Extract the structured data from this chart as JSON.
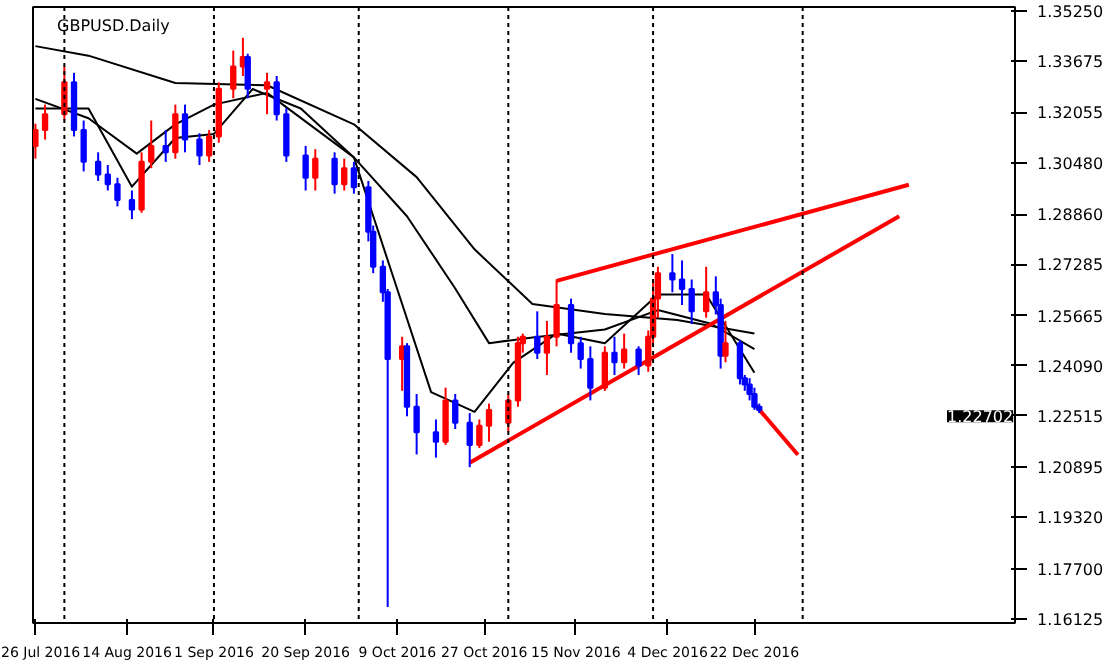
{
  "chart_data": {
    "type": "candlestick",
    "title": "GBPUSD.Daily",
    "x": [
      "2016-07-26",
      "2016-07-28",
      "2016-08-01",
      "2016-08-03",
      "2016-08-05",
      "2016-08-08",
      "2016-08-10",
      "2016-08-12",
      "2016-08-15",
      "2016-08-17",
      "2016-08-19",
      "2016-08-22",
      "2016-08-24",
      "2016-08-26",
      "2016-08-29",
      "2016-08-31",
      "2016-09-02",
      "2016-09-05",
      "2016-09-07",
      "2016-09-08",
      "2016-09-12",
      "2016-09-14",
      "2016-09-16",
      "2016-09-20",
      "2016-09-22",
      "2016-09-26",
      "2016-09-28",
      "2016-09-30",
      "2016-10-03",
      "2016-10-04",
      "2016-10-06",
      "2016-10-07",
      "2016-10-10",
      "2016-10-11",
      "2016-10-13",
      "2016-10-17",
      "2016-10-19",
      "2016-10-21",
      "2016-10-24",
      "2016-10-26",
      "2016-10-28",
      "2016-11-01",
      "2016-11-03",
      "2016-11-04",
      "2016-11-07",
      "2016-11-09",
      "2016-11-11",
      "2016-11-14",
      "2016-11-16",
      "2016-11-18",
      "2016-11-21",
      "2016-11-23",
      "2016-11-25",
      "2016-11-28",
      "2016-11-30",
      "2016-12-01",
      "2016-12-02",
      "2016-12-05",
      "2016-12-07",
      "2016-12-09",
      "2016-12-12",
      "2016-12-14",
      "2016-12-15",
      "2016-12-16",
      "2016-12-19",
      "2016-12-20",
      "2016-12-21",
      "2016-12-22",
      "2016-12-23"
    ],
    "ohlc": [
      [
        1.31,
        1.317,
        1.306,
        1.315
      ],
      [
        1.315,
        1.323,
        1.312,
        1.32
      ],
      [
        1.32,
        1.335,
        1.318,
        1.33
      ],
      [
        1.33,
        1.333,
        1.313,
        1.315
      ],
      [
        1.315,
        1.318,
        1.302,
        1.305
      ],
      [
        1.305,
        1.308,
        1.299,
        1.301
      ],
      [
        1.301,
        1.304,
        1.296,
        1.298
      ],
      [
        1.298,
        1.3,
        1.291,
        1.293
      ],
      [
        1.293,
        1.296,
        1.287,
        1.29
      ],
      [
        1.29,
        1.308,
        1.289,
        1.305
      ],
      [
        1.305,
        1.318,
        1.303,
        1.31
      ],
      [
        1.31,
        1.315,
        1.305,
        1.308
      ],
      [
        1.308,
        1.323,
        1.306,
        1.32
      ],
      [
        1.32,
        1.323,
        1.308,
        1.312
      ],
      [
        1.312,
        1.314,
        1.304,
        1.307
      ],
      [
        1.307,
        1.315,
        1.305,
        1.313
      ],
      [
        1.313,
        1.33,
        1.311,
        1.328
      ],
      [
        1.328,
        1.34,
        1.325,
        1.335
      ],
      [
        1.335,
        1.344,
        1.332,
        1.338
      ],
      [
        1.338,
        1.339,
        1.325,
        1.328
      ],
      [
        1.328,
        1.333,
        1.32,
        1.33
      ],
      [
        1.33,
        1.332,
        1.318,
        1.32
      ],
      [
        1.32,
        1.322,
        1.305,
        1.307
      ],
      [
        1.307,
        1.31,
        1.296,
        1.3
      ],
      [
        1.3,
        1.309,
        1.296,
        1.306
      ],
      [
        1.306,
        1.308,
        1.295,
        1.298
      ],
      [
        1.298,
        1.306,
        1.296,
        1.303
      ],
      [
        1.303,
        1.305,
        1.295,
        1.297
      ],
      [
        1.297,
        1.299,
        1.28,
        1.283
      ],
      [
        1.283,
        1.285,
        1.27,
        1.272
      ],
      [
        1.272,
        1.274,
        1.261,
        1.264
      ],
      [
        1.264,
        1.265,
        1.165,
        1.243
      ],
      [
        1.243,
        1.25,
        1.233,
        1.247
      ],
      [
        1.247,
        1.248,
        1.225,
        1.228
      ],
      [
        1.228,
        1.232,
        1.213,
        1.22
      ],
      [
        1.22,
        1.224,
        1.212,
        1.217
      ],
      [
        1.217,
        1.234,
        1.216,
        1.23
      ],
      [
        1.23,
        1.232,
        1.221,
        1.223
      ],
      [
        1.223,
        1.226,
        1.209,
        1.216
      ],
      [
        1.216,
        1.224,
        1.215,
        1.222
      ],
      [
        1.222,
        1.229,
        1.217,
        1.227
      ],
      [
        1.223,
        1.232,
        1.22,
        1.23
      ],
      [
        1.23,
        1.25,
        1.228,
        1.248
      ],
      [
        1.248,
        1.251,
        1.245,
        1.25
      ],
      [
        1.25,
        1.258,
        1.243,
        1.245
      ],
      [
        1.245,
        1.255,
        1.238,
        1.25
      ],
      [
        1.25,
        1.268,
        1.247,
        1.26
      ],
      [
        1.26,
        1.262,
        1.245,
        1.248
      ],
      [
        1.248,
        1.25,
        1.24,
        1.243
      ],
      [
        1.243,
        1.247,
        1.23,
        1.234
      ],
      [
        1.234,
        1.247,
        1.233,
        1.245
      ],
      [
        1.245,
        1.25,
        1.238,
        1.242
      ],
      [
        1.242,
        1.251,
        1.24,
        1.246
      ],
      [
        1.246,
        1.247,
        1.238,
        1.241
      ],
      [
        1.241,
        1.252,
        1.239,
        1.25
      ],
      [
        1.25,
        1.268,
        1.248,
        1.262
      ],
      [
        1.262,
        1.272,
        1.256,
        1.27
      ],
      [
        1.27,
        1.276,
        1.264,
        1.268
      ],
      [
        1.268,
        1.274,
        1.26,
        1.265
      ],
      [
        1.265,
        1.268,
        1.254,
        1.258
      ],
      [
        1.258,
        1.272,
        1.256,
        1.264
      ],
      [
        1.264,
        1.269,
        1.257,
        1.26
      ],
      [
        1.26,
        1.262,
        1.24,
        1.244
      ],
      [
        1.244,
        1.255,
        1.242,
        1.248
      ],
      [
        1.248,
        1.249,
        1.235,
        1.237
      ],
      [
        1.237,
        1.238,
        1.233,
        1.235
      ],
      [
        1.235,
        1.237,
        1.23,
        1.232
      ],
      [
        1.232,
        1.234,
        1.227,
        1.228
      ],
      [
        1.228,
        1.229,
        1.226,
        1.227
      ]
    ],
    "colors": [
      "#ff0000",
      "#ff0000",
      "#ff0000",
      "#0000ff",
      "#0000ff",
      "#0000ff",
      "#0000ff",
      "#0000ff",
      "#0000ff",
      "#ff0000",
      "#ff0000",
      "#0000ff",
      "#ff0000",
      "#0000ff",
      "#0000ff",
      "#ff0000",
      "#ff0000",
      "#ff0000",
      "#ff0000",
      "#0000ff",
      "#ff0000",
      "#0000ff",
      "#0000ff",
      "#0000ff",
      "#ff0000",
      "#0000ff",
      "#ff0000",
      "#0000ff",
      "#0000ff",
      "#0000ff",
      "#0000ff",
      "#0000ff",
      "#ff0000",
      "#0000ff",
      "#0000ff",
      "#0000ff",
      "#ff0000",
      "#0000ff",
      "#0000ff",
      "#ff0000",
      "#ff0000",
      "#ff0000",
      "#ff0000",
      "#ff0000",
      "#0000ff",
      "#ff0000",
      "#ff0000",
      "#0000ff",
      "#0000ff",
      "#0000ff",
      "#ff0000",
      "#0000ff",
      "#ff0000",
      "#0000ff",
      "#ff0000",
      "#ff0000",
      "#ff0000",
      "#0000ff",
      "#0000ff",
      "#0000ff",
      "#ff0000",
      "#0000ff",
      "#0000ff",
      "#ff0000",
      "#0000ff",
      "#0000ff",
      "#0000ff",
      "#0000ff",
      "#0000ff"
    ],
    "series": [
      {
        "type": "line",
        "color": "#000000",
        "x": [
          "2016-07-26",
          "2016-08-06",
          "2016-08-24",
          "2016-09-12",
          "2016-09-30",
          "2016-10-13",
          "2016-10-25",
          "2016-11-06",
          "2016-11-21",
          "2016-12-06",
          "2016-12-22"
        ],
        "values": [
          1.3414,
          1.3384,
          1.3298,
          1.3291,
          1.3168,
          1.3002,
          1.2775,
          1.2603,
          1.2572,
          1.2553,
          1.251
        ]
      },
      {
        "type": "line",
        "color": "#000000",
        "x": [
          "2016-07-26",
          "2016-08-06",
          "2016-08-16",
          "2016-08-24",
          "2016-09-01",
          "2016-09-12",
          "2016-09-30",
          "2016-10-11",
          "2016-10-21",
          "2016-10-28",
          "2016-11-06",
          "2016-11-21",
          "2016-12-02",
          "2016-12-13",
          "2016-12-22"
        ],
        "values": [
          1.3248,
          1.3187,
          1.3076,
          1.3168,
          1.323,
          1.3267,
          1.3064,
          1.2879,
          1.2652,
          1.248,
          1.2498,
          1.2523,
          1.2584,
          1.2541,
          1.2461
        ]
      },
      {
        "type": "line",
        "color": "#000000",
        "x": [
          "2016-07-26",
          "2016-08-06",
          "2016-08-15",
          "2016-08-24",
          "2016-09-01",
          "2016-09-09",
          "2016-09-19",
          "2016-09-30",
          "2016-10-08",
          "2016-10-16",
          "2016-10-25",
          "2016-11-02",
          "2016-11-11",
          "2016-11-21",
          "2016-12-02",
          "2016-12-12",
          "2016-12-22"
        ],
        "values": [
          1.3218,
          1.3218,
          1.2972,
          1.3125,
          1.3138,
          1.3279,
          1.3218,
          1.3064,
          1.2695,
          1.2326,
          1.2264,
          1.2418,
          1.251,
          1.248,
          1.2633,
          1.2633,
          1.2387
        ]
      },
      {
        "type": "line",
        "color": "#ff0000",
        "x": [
          "2016-11-11",
          "2017-01-23"
        ],
        "values": [
          1.2676,
          1.2978
        ]
      },
      {
        "type": "line",
        "color": "#ff0000",
        "x": [
          "2016-10-24",
          "2017-01-21"
        ],
        "values": [
          1.2104,
          1.2879
        ]
      },
      {
        "type": "line",
        "color": "#ff0000",
        "x": [
          "2016-12-22",
          "2016-12-31"
        ],
        "values": [
          1.2289,
          1.2129
        ]
      }
    ],
    "xlim": [
      "2016-07-25T12:00",
      "2017-02-14"
    ],
    "xticks": [
      {
        "value": "2016-07-26",
        "label": "26 Jul 2016"
      },
      {
        "value": "2016-08-14",
        "label": "14 Aug 2016"
      },
      {
        "value": "2016-09-01",
        "label": "1 Sep 2016"
      },
      {
        "value": "2016-09-20",
        "label": "20 Sep 2016"
      },
      {
        "value": "2016-10-09",
        "label": "9 Oct 2016"
      },
      {
        "value": "2016-10-27",
        "label": "27 Oct 2016"
      },
      {
        "value": "2016-11-15",
        "label": "15 Nov 2016"
      },
      {
        "value": "2016-12-04",
        "label": "4 Dec 2016"
      },
      {
        "value": "2016-12-22",
        "label": "22 Dec 2016"
      }
    ],
    "ylim": [
      1.16,
      1.3537
    ],
    "yticks": [
      {
        "value": 1.3525,
        "label": "1.35250"
      },
      {
        "value": 1.33675,
        "label": "1.33675"
      },
      {
        "value": 1.32055,
        "label": "1.32055"
      },
      {
        "value": 1.3048,
        "label": "1.30480"
      },
      {
        "value": 1.2886,
        "label": "1.28860"
      },
      {
        "value": 1.27285,
        "label": "1.27285"
      },
      {
        "value": 1.25665,
        "label": "1.25665"
      },
      {
        "value": 1.2409,
        "label": "1.24090"
      },
      {
        "value": 1.22515,
        "label": "1.22515"
      },
      {
        "value": 1.20895,
        "label": "1.20895"
      },
      {
        "value": 1.1932,
        "label": "1.19320"
      },
      {
        "value": 1.177,
        "label": "1.17700"
      },
      {
        "value": 1.16125,
        "label": "1.16125"
      }
    ],
    "ref_lines": [
      {
        "axis": "x",
        "value": "2016-08-01",
        "color": "#000000",
        "line_style": "dashed"
      },
      {
        "axis": "x",
        "value": "2016-09-01",
        "color": "#000000",
        "line_style": "dashed"
      },
      {
        "axis": "x",
        "value": "2016-10-01",
        "color": "#000000",
        "line_style": "dashed"
      },
      {
        "axis": "x",
        "value": "2016-11-01",
        "color": "#000000",
        "line_style": "dashed"
      },
      {
        "axis": "x",
        "value": "2016-12-01",
        "color": "#000000",
        "line_style": "dashed"
      },
      {
        "axis": "x",
        "value": "2017-01-01",
        "color": "#000000",
        "line_style": "dashed"
      }
    ],
    "annotations": [
      "1.22702"
    ]
  }
}
